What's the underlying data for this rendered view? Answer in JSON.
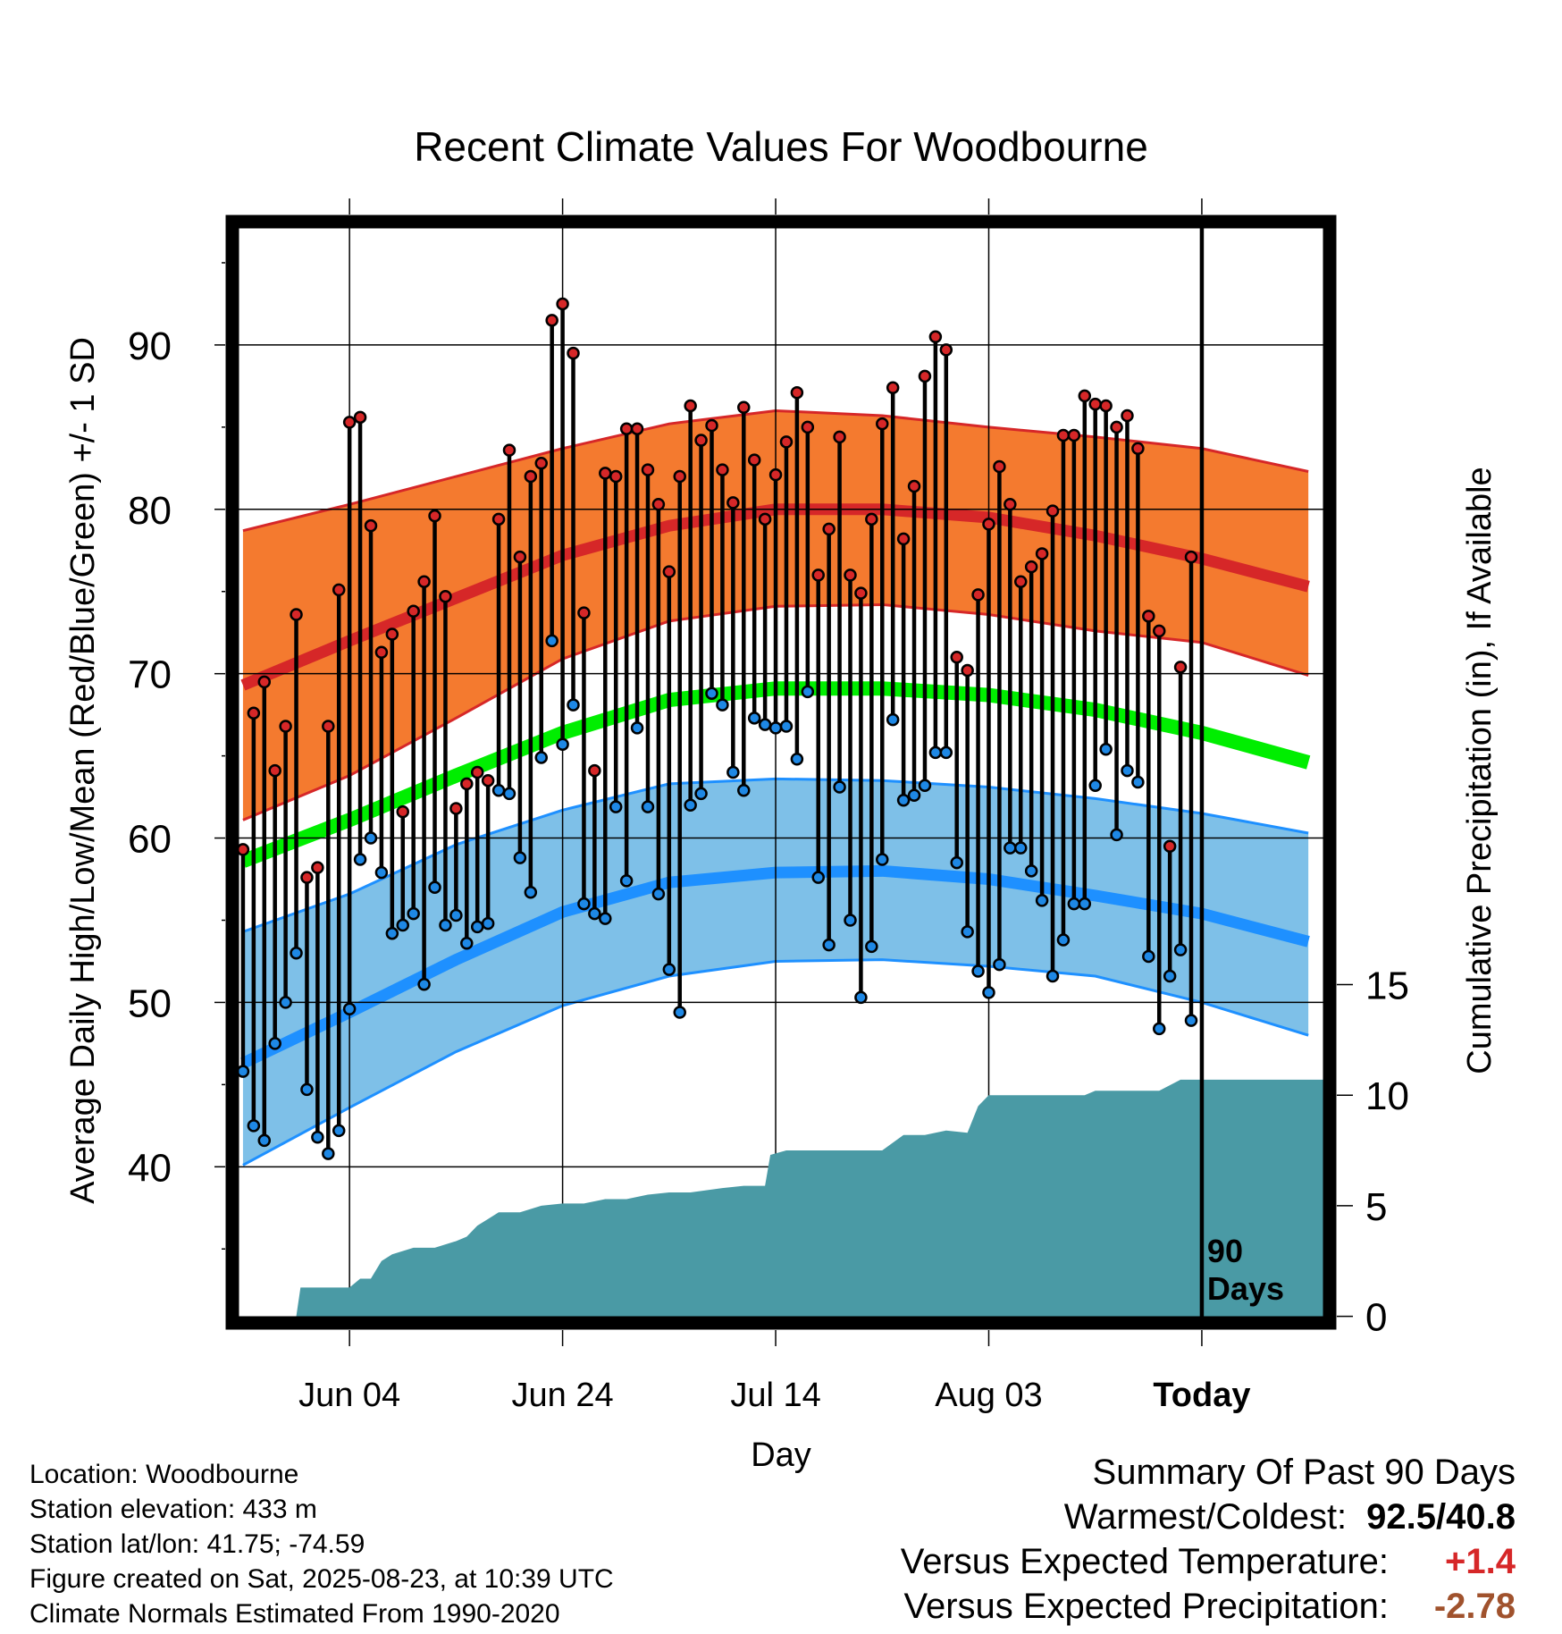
{
  "chart_data": {
    "type": "line",
    "title": "Recent Climate Values For Woodbourne",
    "xlabel": "Day",
    "ylabel": "Average Daily High/Low/Mean (Red/Blue/Green) +/- 1 SD",
    "y2label": "Cumulative Precipitation (in), If Available",
    "ylim": [
      30.5,
      97.5
    ],
    "y2lim": [
      -0.3,
      49.5
    ],
    "yticks": [
      40,
      50,
      60,
      70,
      80,
      90
    ],
    "y2ticks": [
      0,
      5,
      10,
      15
    ],
    "xlim": [
      -11,
      92
    ],
    "xticks": [
      {
        "day": 0,
        "label": "Jun 04"
      },
      {
        "day": 20,
        "label": "Jun 24"
      },
      {
        "day": 40,
        "label": "Jul 14"
      },
      {
        "day": 60,
        "label": "Aug 03"
      },
      {
        "day": 80,
        "label": "Today"
      }
    ],
    "today_marker_label": "90\nDays",
    "normals": {
      "days": [
        -10,
        0,
        10,
        20,
        30,
        40,
        50,
        60,
        70,
        80,
        90
      ],
      "high_mean": [
        69.3,
        72.0,
        74.6,
        77.2,
        79.0,
        80.0,
        80.0,
        79.5,
        78.4,
        77.0,
        75.3
      ],
      "high_sd_upper": [
        78.7,
        80.3,
        82.0,
        83.7,
        85.2,
        86.0,
        85.7,
        85.0,
        84.4,
        83.7,
        82.3
      ],
      "high_sd_lower": [
        61.1,
        63.8,
        67.3,
        70.9,
        73.2,
        74.1,
        74.2,
        73.6,
        72.6,
        71.9,
        69.9
      ],
      "mean": [
        58.6,
        61.1,
        63.8,
        66.4,
        68.4,
        69.1,
        69.1,
        68.7,
        67.8,
        66.4,
        64.6
      ],
      "low_mean": [
        46.3,
        49.4,
        52.6,
        55.5,
        57.3,
        57.9,
        58.0,
        57.5,
        56.5,
        55.4,
        53.7
      ],
      "low_sd_upper": [
        54.3,
        56.6,
        59.6,
        61.7,
        63.3,
        63.6,
        63.5,
        63.1,
        62.4,
        61.5,
        60.3
      ],
      "low_sd_lower": [
        40.1,
        43.6,
        47.0,
        49.8,
        51.6,
        52.5,
        52.6,
        52.2,
        51.6,
        50.0,
        48.0
      ]
    },
    "daily": [
      {
        "day": -10,
        "high": 59.3,
        "low": 45.8
      },
      {
        "day": -9,
        "high": 67.6,
        "low": 42.5
      },
      {
        "day": -8,
        "high": 69.5,
        "low": 41.6
      },
      {
        "day": -7,
        "high": 64.1,
        "low": 47.5
      },
      {
        "day": -6,
        "high": 66.8,
        "low": 50.0
      },
      {
        "day": -5,
        "high": 73.6,
        "low": 53.0
      },
      {
        "day": -4,
        "high": 57.6,
        "low": 44.7
      },
      {
        "day": -3,
        "high": 58.2,
        "low": 41.8
      },
      {
        "day": -2,
        "high": 66.8,
        "low": 40.8
      },
      {
        "day": -1,
        "high": 75.1,
        "low": 42.2
      },
      {
        "day": 0,
        "high": 85.3,
        "low": 49.6
      },
      {
        "day": 1,
        "high": 85.6,
        "low": 58.7
      },
      {
        "day": 2,
        "high": 79.0,
        "low": 60.0
      },
      {
        "day": 3,
        "high": 71.3,
        "low": 57.9
      },
      {
        "day": 4,
        "high": 72.4,
        "low": 54.2
      },
      {
        "day": 5,
        "high": 61.6,
        "low": 54.7
      },
      {
        "day": 6,
        "high": 73.8,
        "low": 55.4
      },
      {
        "day": 7,
        "high": 75.6,
        "low": 51.1
      },
      {
        "day": 8,
        "high": 79.6,
        "low": 57.0
      },
      {
        "day": 9,
        "high": 74.7,
        "low": 54.7
      },
      {
        "day": 10,
        "high": 61.8,
        "low": 55.3
      },
      {
        "day": 11,
        "high": 63.3,
        "low": 53.6
      },
      {
        "day": 12,
        "high": 64.0,
        "low": 54.6
      },
      {
        "day": 13,
        "high": 63.5,
        "low": 54.8
      },
      {
        "day": 14,
        "high": 79.4,
        "low": 62.9
      },
      {
        "day": 15,
        "high": 83.6,
        "low": 62.7
      },
      {
        "day": 16,
        "high": 77.1,
        "low": 58.8
      },
      {
        "day": 17,
        "high": 82.0,
        "low": 56.7
      },
      {
        "day": 18,
        "high": 82.8,
        "low": 64.9
      },
      {
        "day": 19,
        "high": 91.5,
        "low": 72.0
      },
      {
        "day": 20,
        "high": 92.5,
        "low": 65.7
      },
      {
        "day": 21,
        "high": 89.5,
        "low": 68.1
      },
      {
        "day": 22,
        "high": 73.7,
        "low": 56.0
      },
      {
        "day": 23,
        "high": 64.1,
        "low": 55.4
      },
      {
        "day": 24,
        "high": 82.2,
        "low": 55.1
      },
      {
        "day": 25,
        "high": 82.0,
        "low": 61.9
      },
      {
        "day": 26,
        "high": 84.9,
        "low": 57.4
      },
      {
        "day": 27,
        "high": 84.9,
        "low": 66.7
      },
      {
        "day": 28,
        "high": 82.4,
        "low": 61.9
      },
      {
        "day": 29,
        "high": 80.3,
        "low": 56.6
      },
      {
        "day": 30,
        "high": 76.2,
        "low": 52.0
      },
      {
        "day": 31,
        "high": 82.0,
        "low": 49.4
      },
      {
        "day": 32,
        "high": 86.3,
        "low": 62.0
      },
      {
        "day": 33,
        "high": 84.2,
        "low": 62.7
      },
      {
        "day": 34,
        "high": 85.1,
        "low": 68.8
      },
      {
        "day": 35,
        "high": 82.4,
        "low": 68.1
      },
      {
        "day": 36,
        "high": 80.4,
        "low": 64.0
      },
      {
        "day": 37,
        "high": 86.2,
        "low": 62.9
      },
      {
        "day": 38,
        "high": 83.0,
        "low": 67.3
      },
      {
        "day": 39,
        "high": 79.4,
        "low": 66.9
      },
      {
        "day": 40,
        "high": 82.1,
        "low": 66.7
      },
      {
        "day": 41,
        "high": 84.1,
        "low": 66.8
      },
      {
        "day": 42,
        "high": 87.1,
        "low": 64.8
      },
      {
        "day": 43,
        "high": 85.0,
        "low": 68.9
      },
      {
        "day": 44,
        "high": 76.0,
        "low": 57.6
      },
      {
        "day": 45,
        "high": 78.8,
        "low": 53.5
      },
      {
        "day": 46,
        "high": 84.4,
        "low": 63.1
      },
      {
        "day": 47,
        "high": 76.0,
        "low": 55.0
      },
      {
        "day": 48,
        "high": 74.9,
        "low": 50.3
      },
      {
        "day": 49,
        "high": 79.4,
        "low": 53.4
      },
      {
        "day": 50,
        "high": 85.2,
        "low": 58.7
      },
      {
        "day": 51,
        "high": 87.4,
        "low": 67.2
      },
      {
        "day": 52,
        "high": 78.2,
        "low": 62.3
      },
      {
        "day": 53,
        "high": 81.4,
        "low": 62.6
      },
      {
        "day": 54,
        "high": 88.1,
        "low": 63.2
      },
      {
        "day": 55,
        "high": 90.5,
        "low": 65.2
      },
      {
        "day": 56,
        "high": 89.7,
        "low": 65.2
      },
      {
        "day": 57,
        "high": 71.0,
        "low": 58.5
      },
      {
        "day": 58,
        "high": 70.2,
        "low": 54.3
      },
      {
        "day": 59,
        "high": 74.8,
        "low": 51.9
      },
      {
        "day": 60,
        "high": 79.1,
        "low": 50.6
      },
      {
        "day": 61,
        "high": 82.6,
        "low": 52.3
      },
      {
        "day": 62,
        "high": 80.3,
        "low": 59.4
      },
      {
        "day": 63,
        "high": 75.6,
        "low": 59.4
      },
      {
        "day": 64,
        "high": 76.5,
        "low": 58.0
      },
      {
        "day": 65,
        "high": 77.3,
        "low": 56.2
      },
      {
        "day": 66,
        "high": 79.9,
        "low": 51.6
      },
      {
        "day": 67,
        "high": 84.5,
        "low": 53.8
      },
      {
        "day": 68,
        "high": 84.5,
        "low": 56.0
      },
      {
        "day": 69,
        "high": 86.9,
        "low": 56.0
      },
      {
        "day": 70,
        "high": 86.4,
        "low": 63.2
      },
      {
        "day": 71,
        "high": 86.3,
        "low": 65.4
      },
      {
        "day": 72,
        "high": 85.0,
        "low": 60.2
      },
      {
        "day": 73,
        "high": 85.7,
        "low": 64.1
      },
      {
        "day": 74,
        "high": 83.7,
        "low": 63.4
      },
      {
        "day": 75,
        "high": 73.5,
        "low": 52.8
      },
      {
        "day": 76,
        "high": 72.6,
        "low": 48.4
      },
      {
        "day": 77,
        "high": 59.5,
        "low": 51.6
      },
      {
        "day": 78,
        "high": 70.4,
        "low": 53.2
      },
      {
        "day": 79,
        "high": 77.1,
        "low": 48.9
      }
    ],
    "precip": {
      "days": [
        -11,
        -5,
        -4.6,
        -4,
        0,
        1,
        2,
        3,
        4,
        6,
        8,
        10,
        11,
        12,
        13,
        14,
        16,
        18,
        20,
        22,
        24,
        26,
        28,
        30,
        32,
        35,
        37,
        39,
        39.5,
        41,
        44,
        48,
        50,
        52,
        54,
        55,
        56,
        58,
        59,
        60,
        62,
        66,
        69,
        70,
        71,
        73,
        75,
        76,
        78,
        80,
        92
      ],
      "values": [
        0,
        0,
        1.3,
        1.3,
        1.3,
        1.7,
        1.7,
        2.5,
        2.8,
        3.1,
        3.1,
        3.4,
        3.6,
        4.1,
        4.4,
        4.7,
        4.7,
        5.0,
        5.1,
        5.1,
        5.3,
        5.3,
        5.5,
        5.6,
        5.6,
        5.8,
        5.9,
        5.9,
        7.3,
        7.5,
        7.5,
        7.5,
        7.5,
        8.2,
        8.2,
        8.3,
        8.4,
        8.3,
        9.5,
        10.0,
        10.0,
        10.0,
        10.0,
        10.2,
        10.2,
        10.2,
        10.2,
        10.2,
        10.7,
        10.7,
        10.7
      ]
    }
  },
  "footer": {
    "location": "Location: Woodbourne",
    "elevation": "Station elevation: 433 m",
    "latlon": "Station lat/lon: 41.75; -74.59",
    "created": "Figure created on Sat, 2025-08-23, at 10:39 UTC",
    "normals": "Climate Normals Estimated From 1990-2020"
  },
  "summary": {
    "title": "Summary Of Past 90 Days",
    "warm_cold_label": "Warmest/Coldest:",
    "warm_cold_value": "92.5/40.8",
    "temp_label": "Versus Expected Temperature:",
    "temp_value": "+1.4",
    "precip_label": "Versus Expected Precipitation:",
    "precip_value": "-2.78"
  },
  "colors": {
    "high_band": "#f47a2f",
    "high_line": "#d62728",
    "mean_line": "#00ee00",
    "low_band": "#7ec0e8",
    "low_line": "#1e90ff",
    "precip": "#4a9aa5",
    "high_dot": "#d62728",
    "low_dot": "#1e88e5",
    "temp_positive": "#d62728",
    "precip_negative": "#a0522d"
  }
}
